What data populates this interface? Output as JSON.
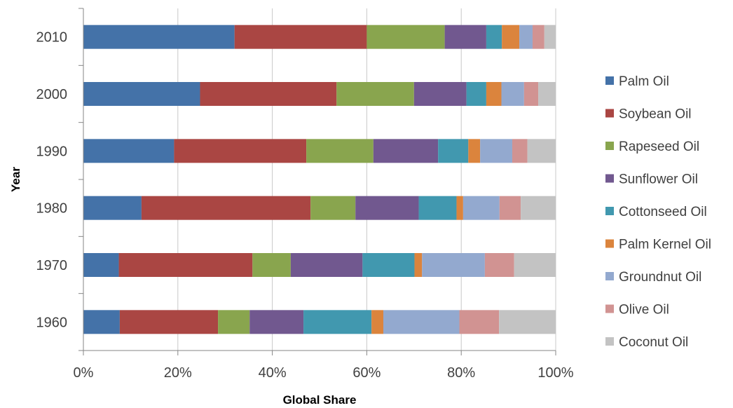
{
  "chart_data": {
    "type": "bar",
    "orientation": "horizontal",
    "stacked": "percent",
    "categories": [
      "2010",
      "2000",
      "1990",
      "1980",
      "1970",
      "1960"
    ],
    "series": [
      {
        "name": "Palm Oil",
        "color": "#4472a8",
        "values": [
          32.0,
          24.7,
          19.2,
          12.3,
          7.5,
          7.7
        ]
      },
      {
        "name": "Soybean Oil",
        "color": "#aa4643",
        "values": [
          28.0,
          28.9,
          28.0,
          35.8,
          28.3,
          20.8
        ]
      },
      {
        "name": "Rapeseed Oil",
        "color": "#89a54e",
        "values": [
          16.5,
          16.4,
          14.2,
          9.5,
          8.1,
          6.7
        ]
      },
      {
        "name": "Sunflower Oil",
        "color": "#71588f",
        "values": [
          8.8,
          11.1,
          13.7,
          13.4,
          15.2,
          11.4
        ]
      },
      {
        "name": "Cottonseed Oil",
        "color": "#4198af",
        "values": [
          3.3,
          4.2,
          6.4,
          8.0,
          11.0,
          14.4
        ]
      },
      {
        "name": "Palm Kernel Oil",
        "color": "#db843d",
        "values": [
          3.7,
          3.2,
          2.5,
          1.4,
          1.6,
          2.5
        ]
      },
      {
        "name": "Groundnut Oil",
        "color": "#93a9cf",
        "values": [
          2.8,
          4.8,
          6.8,
          7.7,
          13.3,
          16.1
        ]
      },
      {
        "name": "Olive Oil",
        "color": "#d19392",
        "values": [
          2.5,
          3.0,
          3.2,
          4.5,
          6.2,
          8.4
        ]
      },
      {
        "name": "Coconut Oil",
        "color": "#c3c3c3",
        "values": [
          2.4,
          3.7,
          6.0,
          7.4,
          8.8,
          12.0
        ]
      }
    ],
    "xlabel": "Global Share",
    "ylabel": "Year",
    "xlim": [
      0,
      100
    ],
    "x_ticks": [
      "0%",
      "20%",
      "40%",
      "60%",
      "80%",
      "100%"
    ],
    "grid": "vertical",
    "legend": "right"
  }
}
